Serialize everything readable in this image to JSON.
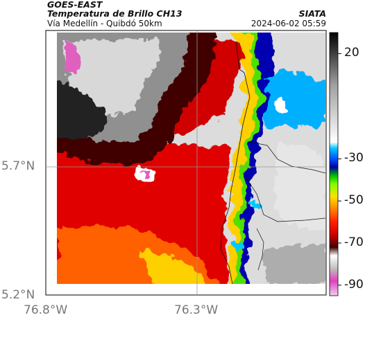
{
  "header": {
    "satellite": "GOES-EAST",
    "product": "Temperatura de Brillo CH13",
    "route": "Vía Medellín - Quibdó 50km",
    "org": "SIATA",
    "datetime": "2024-06-02 05:59"
  },
  "axes": {
    "lat_ticks": [
      "5.7°N",
      "5.2°N"
    ],
    "lon_ticks": [
      "76.8°W",
      "76.3°W"
    ]
  },
  "colorbar": {
    "ticks": [
      "20",
      "-30",
      "-50",
      "-70",
      "-90"
    ],
    "value_min": -95,
    "value_max": 30,
    "stops": [
      {
        "v": -95,
        "c": "#f0d0f0"
      },
      {
        "v": -88,
        "c": "#e040c0"
      },
      {
        "v": -82,
        "c": "#c0c0c0"
      },
      {
        "v": -76,
        "c": "#ffffff"
      },
      {
        "v": -72,
        "c": "#400000"
      },
      {
        "v": -66,
        "c": "#d00000"
      },
      {
        "v": -60,
        "c": "#ff2000"
      },
      {
        "v": -54,
        "c": "#ff8000"
      },
      {
        "v": -48,
        "c": "#ffe000"
      },
      {
        "v": -42,
        "c": "#80ff00"
      },
      {
        "v": -38,
        "c": "#00c000"
      },
      {
        "v": -34,
        "c": "#0000a0"
      },
      {
        "v": -30,
        "c": "#0050ff"
      },
      {
        "v": -25,
        "c": "#00c8ff"
      },
      {
        "v": -22,
        "c": "#ffffff"
      },
      {
        "v": 5,
        "c": "#a0a0a0"
      },
      {
        "v": 30,
        "c": "#000000"
      }
    ]
  }
}
